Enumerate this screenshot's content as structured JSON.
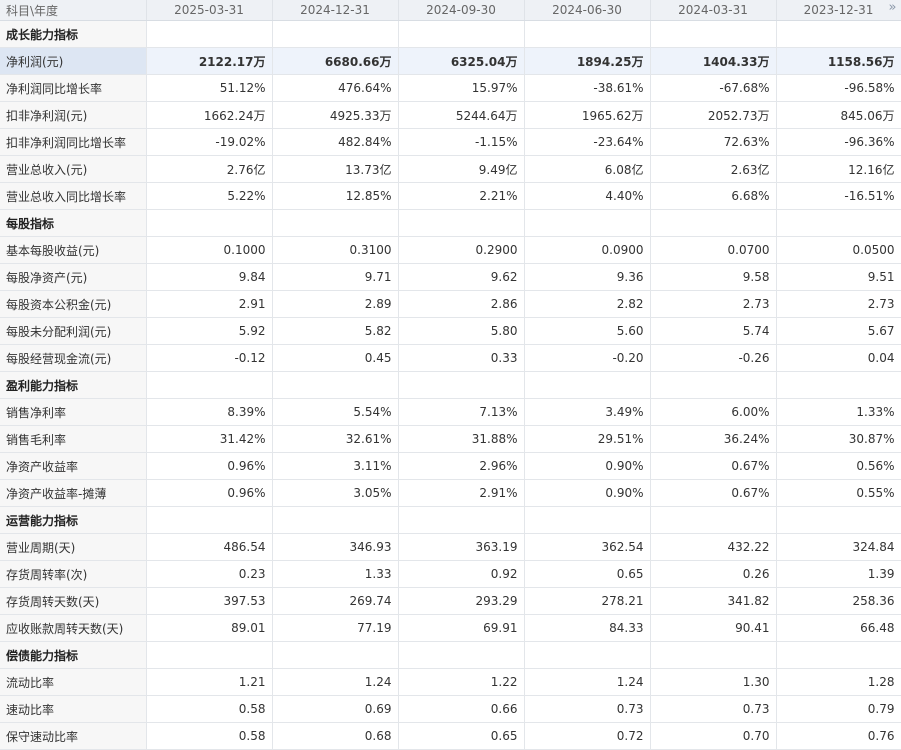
{
  "header": {
    "first_col": "科目\\年度",
    "periods": [
      "2025-03-31",
      "2024-12-31",
      "2024-09-30",
      "2024-06-30",
      "2024-03-31",
      "2023-12-31"
    ],
    "more_icon": "»"
  },
  "rows": [
    {
      "type": "section",
      "label": "成长能力指标"
    },
    {
      "type": "data",
      "label": "净利润(元)",
      "highlight": true,
      "values": [
        "2122.17万",
        "6680.66万",
        "6325.04万",
        "1894.25万",
        "1404.33万",
        "1158.56万"
      ]
    },
    {
      "type": "data",
      "label": "净利润同比增长率",
      "values": [
        "51.12%",
        "476.64%",
        "15.97%",
        "-38.61%",
        "-67.68%",
        "-96.58%"
      ]
    },
    {
      "type": "data",
      "label": "扣非净利润(元)",
      "values": [
        "1662.24万",
        "4925.33万",
        "5244.64万",
        "1965.62万",
        "2052.73万",
        "845.06万"
      ]
    },
    {
      "type": "data",
      "label": "扣非净利润同比增长率",
      "values": [
        "-19.02%",
        "482.84%",
        "-1.15%",
        "-23.64%",
        "72.63%",
        "-96.36%"
      ]
    },
    {
      "type": "data",
      "label": "营业总收入(元)",
      "values": [
        "2.76亿",
        "13.73亿",
        "9.49亿",
        "6.08亿",
        "2.63亿",
        "12.16亿"
      ]
    },
    {
      "type": "data",
      "label": "营业总收入同比增长率",
      "values": [
        "5.22%",
        "12.85%",
        "2.21%",
        "4.40%",
        "6.68%",
        "-16.51%"
      ]
    },
    {
      "type": "section",
      "label": "每股指标"
    },
    {
      "type": "data",
      "label": "基本每股收益(元)",
      "values": [
        "0.1000",
        "0.3100",
        "0.2900",
        "0.0900",
        "0.0700",
        "0.0500"
      ]
    },
    {
      "type": "data",
      "label": "每股净资产(元)",
      "values": [
        "9.84",
        "9.71",
        "9.62",
        "9.36",
        "9.58",
        "9.51"
      ]
    },
    {
      "type": "data",
      "label": "每股资本公积金(元)",
      "values": [
        "2.91",
        "2.89",
        "2.86",
        "2.82",
        "2.73",
        "2.73"
      ]
    },
    {
      "type": "data",
      "label": "每股未分配利润(元)",
      "values": [
        "5.92",
        "5.82",
        "5.80",
        "5.60",
        "5.74",
        "5.67"
      ]
    },
    {
      "type": "data",
      "label": "每股经营现金流(元)",
      "values": [
        "-0.12",
        "0.45",
        "0.33",
        "-0.20",
        "-0.26",
        "0.04"
      ]
    },
    {
      "type": "section",
      "label": "盈利能力指标"
    },
    {
      "type": "data",
      "label": "销售净利率",
      "values": [
        "8.39%",
        "5.54%",
        "7.13%",
        "3.49%",
        "6.00%",
        "1.33%"
      ]
    },
    {
      "type": "data",
      "label": "销售毛利率",
      "values": [
        "31.42%",
        "32.61%",
        "31.88%",
        "29.51%",
        "36.24%",
        "30.87%"
      ]
    },
    {
      "type": "data",
      "label": "净资产收益率",
      "values": [
        "0.96%",
        "3.11%",
        "2.96%",
        "0.90%",
        "0.67%",
        "0.56%"
      ]
    },
    {
      "type": "data",
      "label": "净资产收益率-摊薄",
      "values": [
        "0.96%",
        "3.05%",
        "2.91%",
        "0.90%",
        "0.67%",
        "0.55%"
      ]
    },
    {
      "type": "section",
      "label": "运营能力指标"
    },
    {
      "type": "data",
      "label": "营业周期(天)",
      "values": [
        "486.54",
        "346.93",
        "363.19",
        "362.54",
        "432.22",
        "324.84"
      ]
    },
    {
      "type": "data",
      "label": "存货周转率(次)",
      "values": [
        "0.23",
        "1.33",
        "0.92",
        "0.65",
        "0.26",
        "1.39"
      ]
    },
    {
      "type": "data",
      "label": "存货周转天数(天)",
      "values": [
        "397.53",
        "269.74",
        "293.29",
        "278.21",
        "341.82",
        "258.36"
      ]
    },
    {
      "type": "data",
      "label": "应收账款周转天数(天)",
      "values": [
        "89.01",
        "77.19",
        "69.91",
        "84.33",
        "90.41",
        "66.48"
      ]
    },
    {
      "type": "section",
      "label": "偿债能力指标"
    },
    {
      "type": "data",
      "label": "流动比率",
      "values": [
        "1.21",
        "1.24",
        "1.22",
        "1.24",
        "1.30",
        "1.28"
      ]
    },
    {
      "type": "data",
      "label": "速动比率",
      "values": [
        "0.58",
        "0.69",
        "0.66",
        "0.73",
        "0.73",
        "0.79"
      ]
    },
    {
      "type": "data",
      "label": "保守速动比率",
      "values": [
        "0.58",
        "0.68",
        "0.65",
        "0.72",
        "0.70",
        "0.76"
      ]
    }
  ]
}
